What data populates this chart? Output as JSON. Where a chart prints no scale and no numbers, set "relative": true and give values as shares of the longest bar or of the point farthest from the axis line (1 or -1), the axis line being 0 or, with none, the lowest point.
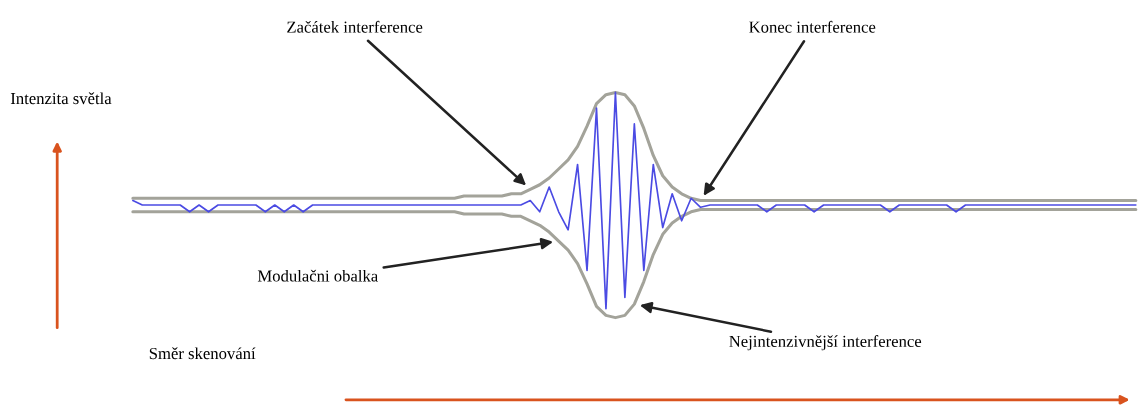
{
  "chart_data": {
    "type": "line",
    "relative": true,
    "xlabel": "Směr skenování",
    "ylabel": "Intenzita světla",
    "categories": [
      null,
      null,
      null,
      null,
      null,
      null,
      null,
      null,
      null,
      null,
      null,
      null,
      null,
      null,
      null,
      null,
      null,
      null,
      null,
      null,
      null,
      null,
      null,
      null,
      null,
      null,
      null,
      null,
      null,
      null,
      null,
      null,
      null,
      null,
      null,
      null,
      null,
      null,
      null,
      null,
      null,
      null,
      null,
      null,
      null,
      null,
      null,
      null,
      null,
      null,
      null,
      null,
      null,
      null,
      null,
      null,
      null,
      null,
      null,
      null,
      null,
      null,
      null,
      null,
      null,
      null,
      null,
      null,
      null,
      null,
      null,
      null,
      null,
      null,
      null,
      null,
      null,
      null,
      null,
      null,
      null,
      null,
      null,
      null,
      null,
      null,
      null,
      null,
      null,
      null,
      null,
      null,
      null,
      null,
      null,
      null,
      null,
      null,
      null,
      null,
      null,
      null,
      null,
      null,
      null,
      null,
      null
    ],
    "series": [
      {
        "color": "#a3a39a",
        "values": [
          0.53,
          0.53,
          0.53,
          0.53,
          0.53,
          0.53,
          0.53,
          0.53,
          0.53,
          0.53,
          0.53,
          0.53,
          0.53,
          0.53,
          0.53,
          0.53,
          0.53,
          0.53,
          0.53,
          0.53,
          0.53,
          0.53,
          0.53,
          0.53,
          0.53,
          0.53,
          0.53,
          0.53,
          0.53,
          0.53,
          0.53,
          0.53,
          0.53,
          0.53,
          0.53,
          0.54,
          0.54,
          0.54,
          0.54,
          0.54,
          0.55,
          0.55,
          0.57,
          0.59,
          0.62,
          0.66,
          0.7,
          0.76,
          0.85,
          0.95,
          0.99,
          1.0,
          0.99,
          0.94,
          0.84,
          0.72,
          0.63,
          0.58,
          0.55,
          0.53,
          0.52,
          0.52,
          0.52,
          0.52,
          0.52,
          0.52,
          0.52,
          0.52,
          0.52,
          0.52,
          0.52,
          0.52,
          0.52,
          0.52,
          0.52,
          0.52,
          0.52,
          0.52,
          0.52,
          0.52,
          0.52,
          0.52,
          0.52,
          0.52,
          0.52,
          0.52,
          0.52,
          0.52,
          0.52,
          0.52,
          0.52,
          0.52,
          0.52,
          0.52,
          0.52,
          0.52,
          0.52,
          0.52,
          0.52,
          0.52,
          0.52,
          0.52,
          0.52,
          0.52,
          0.52,
          0.52,
          0.52
        ]
      },
      {
        "color": "#a3a39a",
        "values": [
          0.47,
          0.47,
          0.47,
          0.47,
          0.47,
          0.47,
          0.47,
          0.47,
          0.47,
          0.47,
          0.47,
          0.47,
          0.47,
          0.47,
          0.47,
          0.47,
          0.47,
          0.47,
          0.47,
          0.47,
          0.47,
          0.47,
          0.47,
          0.47,
          0.47,
          0.47,
          0.47,
          0.47,
          0.47,
          0.47,
          0.47,
          0.47,
          0.47,
          0.47,
          0.47,
          0.46,
          0.46,
          0.46,
          0.46,
          0.46,
          0.45,
          0.45,
          0.43,
          0.41,
          0.38,
          0.34,
          0.3,
          0.24,
          0.15,
          0.05,
          0.01,
          0,
          0.01,
          0.06,
          0.16,
          0.28,
          0.37,
          0.42,
          0.45,
          0.47,
          0.48,
          0.48,
          0.48,
          0.48,
          0.48,
          0.48,
          0.48,
          0.48,
          0.48,
          0.48,
          0.48,
          0.48,
          0.48,
          0.48,
          0.48,
          0.48,
          0.48,
          0.48,
          0.48,
          0.48,
          0.48,
          0.48,
          0.48,
          0.48,
          0.48,
          0.48,
          0.48,
          0.48,
          0.48,
          0.48,
          0.48,
          0.48,
          0.48,
          0.48,
          0.48,
          0.48,
          0.48,
          0.48,
          0.48,
          0.48,
          0.48,
          0.48,
          0.48,
          0.48,
          0.48,
          0.48,
          0.48
        ]
      },
      {
        "color": "#4b4be3",
        "values": [
          0.52,
          0.5,
          0.5,
          0.5,
          0.5,
          0.5,
          0.47,
          0.5,
          0.47,
          0.5,
          0.5,
          0.5,
          0.5,
          0.5,
          0.47,
          0.5,
          0.47,
          0.5,
          0.47,
          0.5,
          0.5,
          0.5,
          0.5,
          0.5,
          0.5,
          0.5,
          0.5,
          0.5,
          0.5,
          0.5,
          0.5,
          0.5,
          0.5,
          0.5,
          0.5,
          0.5,
          0.5,
          0.5,
          0.5,
          0.5,
          0.5,
          0.5,
          0.52,
          0.47,
          0.58,
          0.47,
          0.39,
          0.68,
          0.21,
          0.93,
          0.04,
          1.0,
          0.09,
          0.86,
          0.21,
          0.68,
          0.4,
          0.55,
          0.43,
          0.53,
          0.49,
          0.5,
          0.5,
          0.5,
          0.5,
          0.5,
          0.5,
          0.47,
          0.5,
          0.5,
          0.5,
          0.5,
          0.47,
          0.5,
          0.5,
          0.5,
          0.5,
          0.5,
          0.5,
          0.5,
          0.47,
          0.5,
          0.5,
          0.5,
          0.5,
          0.5,
          0.5,
          0.47,
          0.5,
          0.5,
          0.5,
          0.5,
          0.5,
          0.5,
          0.5,
          0.5,
          0.5,
          0.5,
          0.5,
          0.5,
          0.5,
          0.5,
          0.5,
          0.5,
          0.5,
          0.5,
          0.5
        ]
      }
    ],
    "annotations": [
      "Začátek interference",
      "Konec interference",
      "Modulačni obalka",
      "Nejintenzivnější interference"
    ]
  }
}
